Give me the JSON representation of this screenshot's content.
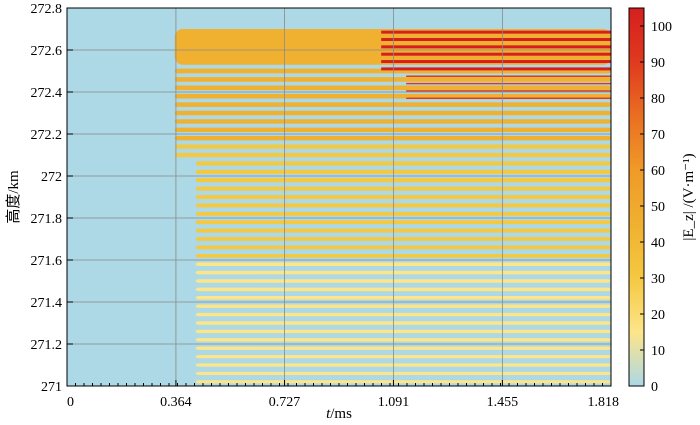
{
  "chart_data": {
    "type": "heatmap",
    "xlabel": {
      "symbol": "t",
      "unit": "/ms"
    },
    "ylabel": "高度/km",
    "colorbar_label": "|E_z| /(V·m⁻¹)",
    "x_ticks": [
      "0",
      "0.364",
      "0.727",
      "1.091",
      "1.455",
      "1.818"
    ],
    "x_tick_values": [
      0,
      0.364,
      0.727,
      1.091,
      1.455,
      1.818
    ],
    "y_ticks": [
      "271",
      "271.2",
      "271.4",
      "271.6",
      "271.8",
      "272",
      "272.2",
      "272.4",
      "272.6",
      "272.8"
    ],
    "y_tick_values": [
      271,
      271.2,
      271.4,
      271.6,
      271.8,
      272,
      272.2,
      272.4,
      272.6,
      272.8
    ],
    "xlim": [
      0,
      1.818
    ],
    "ylim": [
      271,
      272.8
    ],
    "colorbar_ticks": [
      "0",
      "10",
      "20",
      "30",
      "40",
      "50",
      "60",
      "70",
      "80",
      "90",
      "100"
    ],
    "colorbar_values": [
      0,
      10,
      20,
      30,
      40,
      50,
      60,
      70,
      80,
      90,
      100
    ],
    "colorbar_range": [
      0,
      105
    ],
    "colormap": [
      "#add8e6",
      "#fde58a",
      "#f5c842",
      "#f0b030",
      "#f09a28",
      "#ea6e22",
      "#e03a1e",
      "#d61f1f"
    ],
    "grid": true,
    "field_features": {
      "wave_onset_time": 0.36,
      "strong_band_top": 272.7,
      "strong_band_bottom": 272.53,
      "layer_spacing_km": 0.04,
      "background_value": 0,
      "band_peak_value": 40,
      "breakup_region": {
        "t_start": 1.05,
        "alt_min": 272.35,
        "alt_max": 272.7,
        "peak_value": 95
      }
    }
  }
}
